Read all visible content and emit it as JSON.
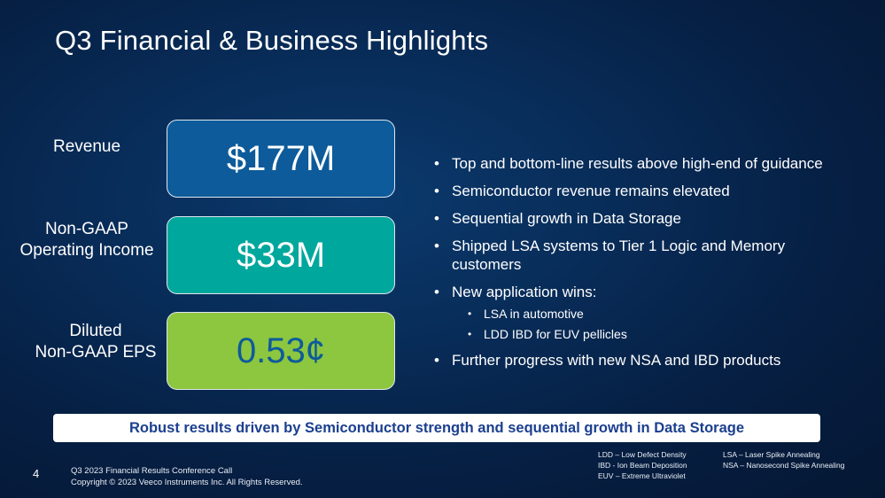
{
  "slide": {
    "title": "Q3 Financial & Business Highlights",
    "page_number": "4"
  },
  "metrics": [
    {
      "label_line1": "Revenue",
      "label_line2": "",
      "value": "$177M",
      "box_color": "#0d5b9a",
      "value_color": "#ffffff"
    },
    {
      "label_line1": "Non-GAAP",
      "label_line2": "Operating Income",
      "value": "$33M",
      "box_color": "#00a79d",
      "value_color": "#ffffff"
    },
    {
      "label_line1": "Diluted",
      "label_line2": "Non-GAAP EPS",
      "value": "0.53¢",
      "box_color": "#8dc63f",
      "value_color": "#0d5b9a"
    }
  ],
  "bullets": [
    "Top and bottom-line results above high-end of guidance",
    "Semiconductor revenue remains elevated",
    "Sequential growth in Data Storage",
    "Shipped LSA systems to Tier 1 Logic and Memory customers",
    "New application wins:",
    "Further progress with new NSA and IBD products"
  ],
  "sub_bullets": [
    "LSA in automotive",
    "LDD IBD for EUV pellicles"
  ],
  "banner": "Robust results driven by Semiconductor strength and sequential growth in Data Storage",
  "footer": {
    "line1": "Q3 2023 Financial Results Conference Call",
    "line2": "Copyright © 2023 Veeco Instruments Inc. All Rights Reserved."
  },
  "abbreviations": {
    "col1": [
      "LDD – Low Defect Density",
      "IBD - Ion Beam Deposition",
      "EUV – Extreme Ultraviolet"
    ],
    "col2": [
      "LSA – Laser Spike Annealing",
      "NSA – Nanosecond Spike Annealing"
    ]
  },
  "colors": {
    "background": "#082c58",
    "banner_text": "#1b3f8f"
  }
}
